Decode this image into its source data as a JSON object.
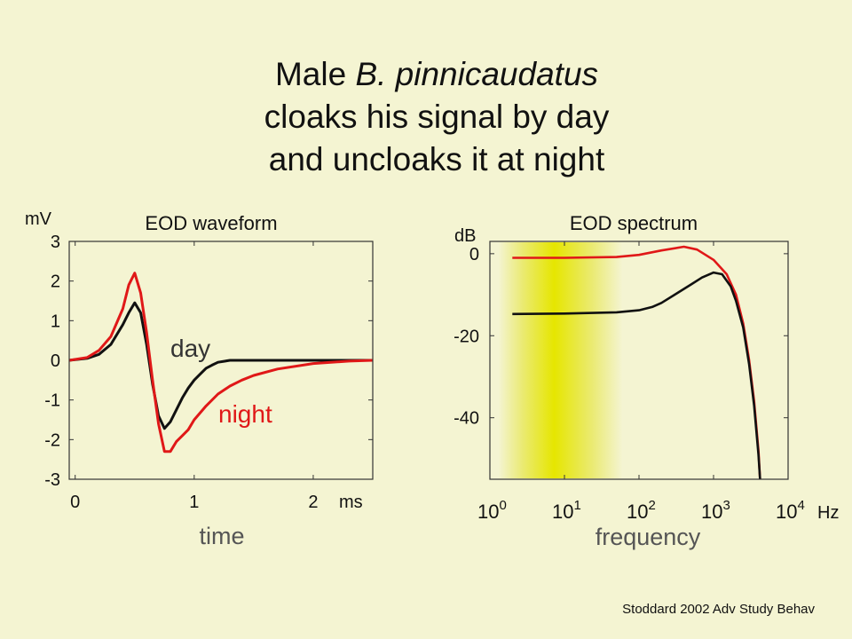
{
  "slide": {
    "title_line1_prefix": "Male",
    "title_line1_species": "B. pinnicaudatus",
    "title_line2": "cloaks his signal by day",
    "title_line3": "and uncloaks it at night",
    "citation": "Stoddard 2002 Adv Study Behav"
  },
  "colors": {
    "background": "#f4f4d2",
    "day": "#111111",
    "night": "#e01818",
    "highlight_band": "#e6e600"
  },
  "chart_data": [
    {
      "type": "line",
      "title": "EOD waveform",
      "xlabel": "time",
      "ylabel": "mV",
      "x_unit": "ms",
      "xlim": [
        -0.05,
        2.5
      ],
      "ylim": [
        -3,
        3
      ],
      "xticks": [
        {
          "v": 0,
          "label": "0"
        },
        {
          "v": 1,
          "label": "1"
        },
        {
          "v": 2,
          "label": "2"
        }
      ],
      "yticks": [
        {
          "v": 3,
          "label": "3"
        },
        {
          "v": 2,
          "label": "2"
        },
        {
          "v": 1,
          "label": "1"
        },
        {
          "v": 0,
          "label": "0"
        },
        {
          "v": -1,
          "label": "-1"
        },
        {
          "v": -2,
          "label": "-2"
        },
        {
          "v": -3,
          "label": "-3"
        }
      ],
      "series": [
        {
          "name": "day",
          "color": "#111111",
          "x": [
            -0.05,
            0.1,
            0.2,
            0.3,
            0.4,
            0.45,
            0.5,
            0.55,
            0.6,
            0.65,
            0.7,
            0.75,
            0.8,
            0.85,
            0.9,
            0.95,
            1.0,
            1.05,
            1.1,
            1.15,
            1.2,
            1.3,
            1.4,
            1.5,
            2.0,
            2.5
          ],
          "y": [
            0,
            0.05,
            0.15,
            0.4,
            0.9,
            1.2,
            1.45,
            1.2,
            0.4,
            -0.6,
            -1.4,
            -1.72,
            -1.55,
            -1.25,
            -0.95,
            -0.7,
            -0.5,
            -0.35,
            -0.2,
            -0.12,
            -0.05,
            0,
            0,
            0,
            0,
            0
          ]
        },
        {
          "name": "night",
          "color": "#e01818",
          "x": [
            -0.05,
            0.1,
            0.2,
            0.3,
            0.4,
            0.45,
            0.5,
            0.55,
            0.6,
            0.65,
            0.7,
            0.75,
            0.8,
            0.85,
            0.9,
            0.95,
            1.0,
            1.1,
            1.2,
            1.3,
            1.4,
            1.5,
            1.7,
            2.0,
            2.3,
            2.5
          ],
          "y": [
            0,
            0.07,
            0.25,
            0.6,
            1.3,
            1.9,
            2.2,
            1.7,
            0.7,
            -0.5,
            -1.6,
            -2.3,
            -2.3,
            -2.05,
            -1.9,
            -1.75,
            -1.5,
            -1.15,
            -0.85,
            -0.65,
            -0.5,
            -0.38,
            -0.22,
            -0.08,
            -0.02,
            0
          ]
        }
      ]
    },
    {
      "type": "line",
      "title": "EOD spectrum",
      "xlabel": "frequency",
      "ylabel": "dB",
      "x_unit": "Hz",
      "x_scale": "log",
      "xlim": [
        1,
        10000
      ],
      "ylim": [
        -55,
        3
      ],
      "highlight_band": [
        1.3,
        60
      ],
      "xticks": [
        {
          "v": 1,
          "base": "10",
          "exp": "0"
        },
        {
          "v": 10,
          "base": "10",
          "exp": "1"
        },
        {
          "v": 100,
          "base": "10",
          "exp": "2"
        },
        {
          "v": 1000,
          "base": "10",
          "exp": "3"
        },
        {
          "v": 10000,
          "base": "10",
          "exp": "4"
        }
      ],
      "yticks": [
        {
          "v": 0,
          "label": "0"
        },
        {
          "v": -20,
          "label": "-20"
        },
        {
          "v": -40,
          "label": "-40"
        }
      ],
      "series": [
        {
          "name": "night",
          "color": "#e01818",
          "x": [
            2,
            10,
            50,
            100,
            200,
            400,
            600,
            1000,
            1500,
            2000,
            2500,
            3000,
            3500,
            4000,
            4200
          ],
          "y": [
            -1,
            -1,
            -0.8,
            -0.3,
            0.8,
            1.7,
            1,
            -1.5,
            -5,
            -10,
            -17,
            -26,
            -36,
            -48,
            -56
          ]
        },
        {
          "name": "day",
          "color": "#111111",
          "x": [
            2,
            10,
            50,
            100,
            150,
            200,
            300,
            500,
            700,
            1000,
            1300,
            1700,
            2000,
            2500,
            3000,
            3500,
            4000,
            4200
          ],
          "y": [
            -14.7,
            -14.6,
            -14.3,
            -13.8,
            -13,
            -12,
            -10,
            -7.5,
            -5.8,
            -4.6,
            -5,
            -8,
            -11.5,
            -18,
            -27,
            -37,
            -49,
            -56
          ]
        }
      ]
    }
  ]
}
